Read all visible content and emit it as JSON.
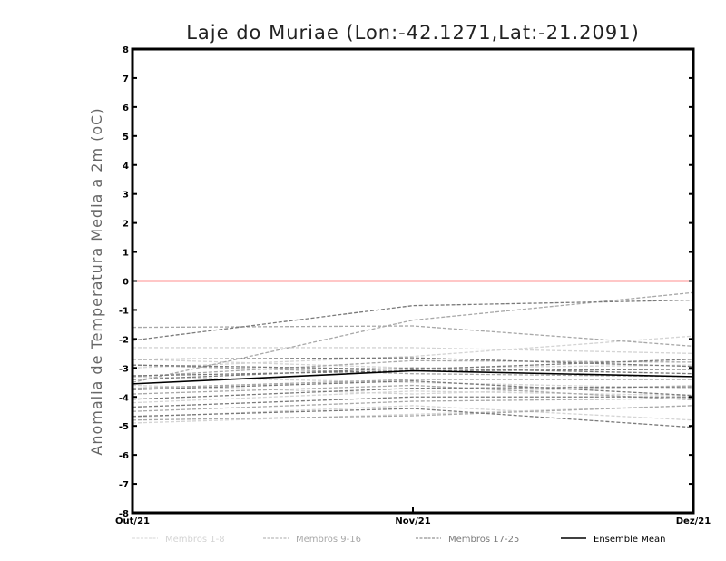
{
  "chart_data": {
    "type": "line",
    "title": "Laje do Muriae (Lon:-42.1271,Lat:-21.2091)",
    "ylabel": "Anomalia de Temperatura Media a 2m (oC)",
    "xlabel": "",
    "categories": [
      "Out/21",
      "Nov/21",
      "Dez/21"
    ],
    "ylim": [
      -8,
      8
    ],
    "yticks": [
      "-8",
      "-7",
      "-6",
      "-5",
      "-4",
      "-3",
      "-2",
      "-1",
      "0",
      "1",
      "2",
      "3",
      "4",
      "5",
      "6",
      "7",
      "8"
    ],
    "reference_line": {
      "value": 0,
      "color": "#ff2020"
    },
    "legend_position": "bottom",
    "groups": [
      {
        "name": "Membros 1-8",
        "color": "#d4d4d4",
        "dashed": true,
        "members": [
          [
            -2.3,
            -2.3,
            -2.5
          ],
          [
            -3.0,
            -2.6,
            -1.9
          ],
          [
            -3.6,
            -3.9,
            -3.6
          ],
          [
            -4.9,
            -4.6,
            -4.3
          ],
          [
            -4.7,
            -4.3,
            -4.8
          ],
          [
            -3.3,
            -3.5,
            -3.7
          ],
          [
            -4.2,
            -3.8,
            -3.95
          ],
          [
            -2.7,
            -3.0,
            -2.9
          ]
        ]
      },
      {
        "name": "Membros 9-16",
        "color": "#a8a8a8",
        "dashed": true,
        "members": [
          [
            -3.5,
            -1.35,
            -0.4
          ],
          [
            -1.6,
            -1.55,
            -2.25
          ],
          [
            -3.3,
            -2.75,
            -2.8
          ],
          [
            -4.5,
            -4.15,
            -4.05
          ],
          [
            -3.7,
            -3.4,
            -3.4
          ],
          [
            -4.8,
            -4.65,
            -4.3
          ],
          [
            -2.9,
            -3.2,
            -3.3
          ],
          [
            -3.9,
            -3.6,
            -4.1
          ]
        ]
      },
      {
        "name": "Membros 17-25",
        "color": "#7a7a7a",
        "dashed": true,
        "members": [
          [
            -2.05,
            -0.85,
            -0.66
          ],
          [
            -2.7,
            -2.65,
            -2.95
          ],
          [
            -3.4,
            -3.0,
            -3.2
          ],
          [
            -4.08,
            -3.7,
            -3.65
          ],
          [
            -4.67,
            -4.4,
            -5.05
          ],
          [
            -3.27,
            -3.1,
            -3.05
          ],
          [
            -2.9,
            -3.05,
            -2.7
          ],
          [
            -3.75,
            -3.45,
            -3.95
          ],
          [
            -4.35,
            -4.0,
            -4.0
          ]
        ]
      },
      {
        "name": "Ensemble Mean",
        "color": "#000000",
        "dashed": false,
        "members": [
          [
            -3.55,
            -3.1,
            -3.3
          ]
        ]
      }
    ]
  }
}
